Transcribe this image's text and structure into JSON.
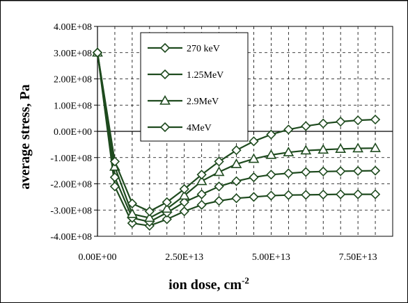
{
  "chart_data": {
    "type": "line",
    "xlabel": "ion dose, cm",
    "xlabel_sup": "-2",
    "ylabel": "average stress, Pa",
    "xlim": [
      0,
      85000000000000.0
    ],
    "ylim": [
      -400000000.0,
      400000000.0
    ],
    "grid": true,
    "legend_position": "top-center",
    "x_tick_labels": [
      "0.00E+00",
      "2.50E+13",
      "5.00E+13",
      "7.50E+13"
    ],
    "x_ticks": [
      0,
      25000000000000.0,
      50000000000000.0,
      75000000000000.0
    ],
    "y_tick_labels": [
      "4.00E+08",
      "3.00E+08",
      "2.00E+08",
      "1.00E+08",
      "0.00E+00",
      "-1.00E+08",
      "-2.00E+08",
      "-3.00E+08",
      "-4.00E+08"
    ],
    "y_ticks": [
      400000000.0,
      300000000.0,
      200000000.0,
      100000000.0,
      0,
      -100000000.0,
      -200000000.0,
      -300000000.0,
      -400000000.0
    ],
    "x": [
      0,
      5000000000000.0,
      10000000000000.0,
      15000000000000.0,
      20000000000000.0,
      25000000000000.0,
      30000000000000.0,
      35000000000000.0,
      40000000000000.0,
      45000000000000.0,
      50000000000000.0,
      55000000000000.0,
      60000000000000.0,
      65000000000000.0,
      70000000000000.0,
      75000000000000.0,
      80000000000000.0
    ],
    "series": [
      {
        "name": "270 keV",
        "marker": "diamond",
        "values": [
          300000000.0,
          -210000000.0,
          -350000000.0,
          -360000000.0,
          -335000000.0,
          -305000000.0,
          -280000000.0,
          -265000000.0,
          -255000000.0,
          -250000000.0,
          -245000000.0,
          -243000000.0,
          -242000000.0,
          -241000000.0,
          -240000000.0,
          -240000000.0,
          -240000000.0
        ]
      },
      {
        "name": "1.25MeV",
        "marker": "diamond",
        "values": [
          300000000.0,
          -175000000.0,
          -330000000.0,
          -345000000.0,
          -310000000.0,
          -270000000.0,
          -240000000.0,
          -210000000.0,
          -190000000.0,
          -175000000.0,
          -165000000.0,
          -160000000.0,
          -155000000.0,
          -153000000.0,
          -152000000.0,
          -151000000.0,
          -150000000.0
        ]
      },
      {
        "name": "2.9MeV",
        "marker": "triangle",
        "values": [
          300000000.0,
          -135000000.0,
          -315000000.0,
          -330000000.0,
          -295000000.0,
          -245000000.0,
          -190000000.0,
          -155000000.0,
          -125000000.0,
          -105000000.0,
          -90000000.0,
          -80000000.0,
          -73000000.0,
          -70000000.0,
          -67000000.0,
          -65000000.0,
          -64000000.0
        ]
      },
      {
        "name": "4MeV",
        "marker": "diamond",
        "values": [
          300000000.0,
          -115000000.0,
          -275000000.0,
          -305000000.0,
          -270000000.0,
          -220000000.0,
          -165000000.0,
          -115000000.0,
          -72000000.0,
          -38000000.0,
          -12000000.0,
          7000000.0,
          20000000.0,
          30000000.0,
          37000000.0,
          42000000.0,
          45000000.0
        ]
      }
    ]
  },
  "colors": {
    "line": "#1e4a1e",
    "grid": "#000000",
    "marker_fill": "#ffffff"
  }
}
